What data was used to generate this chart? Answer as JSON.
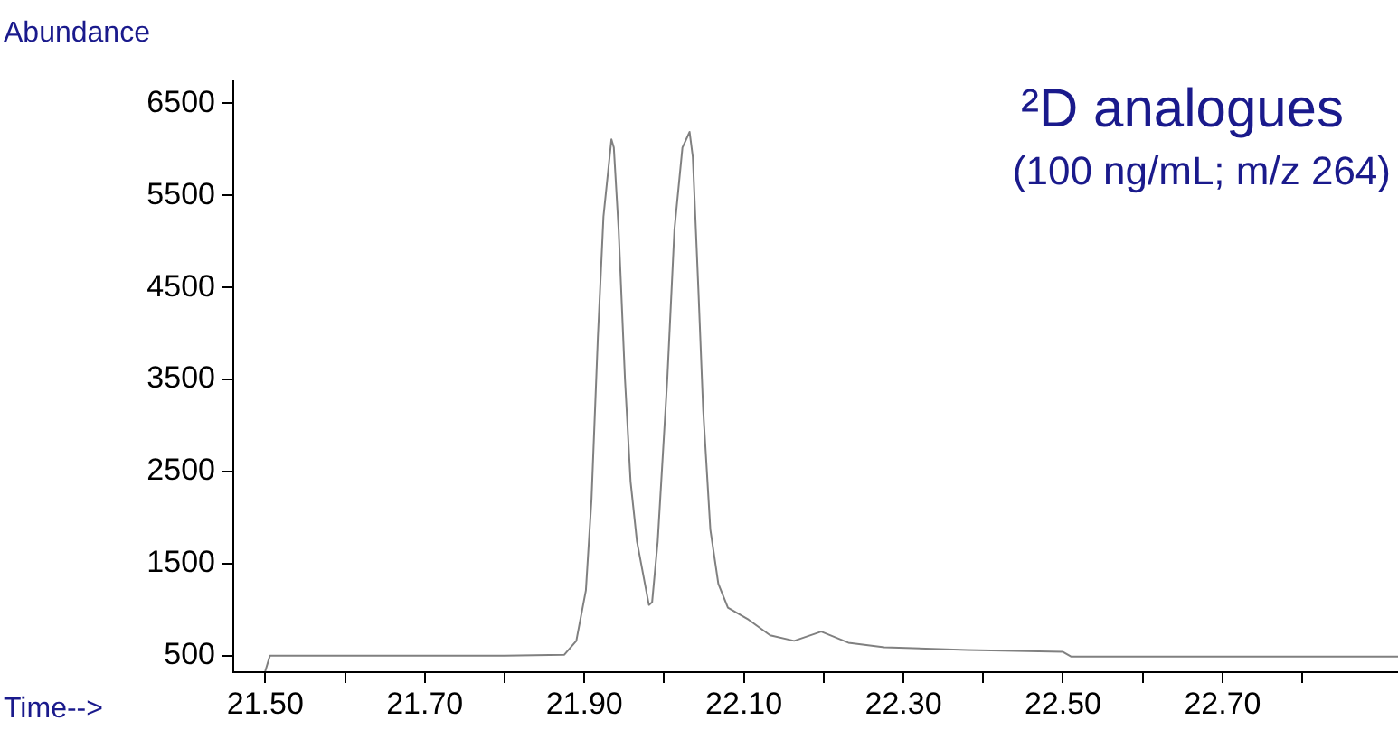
{
  "chart_data": {
    "type": "line",
    "title": "²D analogues",
    "subtitle": "(100 ng/mL; m/z 264)",
    "xlabel": "Time-->",
    "ylabel": "Abundance",
    "x": [
      21.5,
      21.506,
      21.6,
      21.7,
      21.8,
      21.875,
      21.89,
      21.902,
      21.909,
      21.917,
      21.924,
      21.934,
      21.937,
      21.943,
      21.951,
      21.958,
      21.966,
      21.981,
      21.985,
      21.992,
      22.004,
      22.013,
      22.023,
      22.032,
      22.036,
      22.043,
      22.049,
      22.058,
      22.068,
      22.08,
      22.106,
      22.133,
      22.163,
      22.197,
      22.231,
      22.276,
      22.38,
      22.5,
      22.51,
      22.7,
      22.92
    ],
    "series": [
      {
        "color": "#808080",
        "values": [
          330,
          500,
          500,
          500,
          500,
          510,
          660,
          1210,
          2190,
          3960,
          5270,
          6110,
          6020,
          5130,
          3500,
          2390,
          1740,
          1050,
          1080,
          1740,
          3500,
          5130,
          6020,
          6190,
          5920,
          4480,
          3170,
          1870,
          1280,
          1020,
          890,
          720,
          660,
          760,
          640,
          590,
          560,
          540,
          490,
          490,
          490
        ]
      }
    ],
    "xlim": [
      21.46,
      22.92
    ],
    "ylim": [
      320,
      6740
    ],
    "xticks": [
      {
        "value": 21.5,
        "label": "21.50"
      },
      {
        "value": 21.6,
        "label": null
      },
      {
        "value": 21.7,
        "label": "21.70"
      },
      {
        "value": 21.8,
        "label": null
      },
      {
        "value": 21.9,
        "label": "21.90"
      },
      {
        "value": 22.0,
        "label": null
      },
      {
        "value": 22.1,
        "label": "22.10"
      },
      {
        "value": 22.2,
        "label": null
      },
      {
        "value": 22.3,
        "label": "22.30"
      },
      {
        "value": 22.4,
        "label": null
      },
      {
        "value": 22.5,
        "label": "22.50"
      },
      {
        "value": 22.6,
        "label": null
      },
      {
        "value": 22.7,
        "label": "22.70"
      },
      {
        "value": 22.8,
        "label": null
      }
    ],
    "yticks": [
      500,
      1500,
      2500,
      3500,
      4500,
      5500,
      6500
    ],
    "grid": false,
    "legend": false,
    "marker": "none",
    "line_style": "solid"
  }
}
